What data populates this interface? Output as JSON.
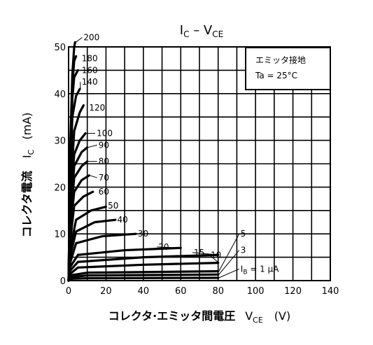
{
  "chart_data": {
    "type": "line",
    "title_main": "I",
    "title_sub": "C",
    "title_dash": " – V",
    "title_sub2": "CE",
    "xlabel": "コレクタ·エミッタ間電圧",
    "xlabel_var": "V",
    "xlabel_var_sub": "CE",
    "xlabel_unit": "(V)",
    "ylabel": "コレクタ電流",
    "ylabel_var": "I",
    "ylabel_var_sub": "C",
    "ylabel_unit": "(mA)",
    "xlim": [
      0,
      140
    ],
    "ylim": [
      0,
      50
    ],
    "x_ticks": [
      0,
      20,
      40,
      60,
      80,
      100,
      120,
      140
    ],
    "y_ticks": [
      0,
      10,
      20,
      30,
      40,
      50
    ],
    "x_tick_labels": [
      "0",
      "20",
      "40",
      "60",
      "80",
      "100",
      "120",
      "140"
    ],
    "y_tick_labels": [
      "0",
      "10",
      "20",
      "30",
      "40",
      "50"
    ],
    "grid": true,
    "legend_box": {
      "line1": "エミッタ接地",
      "line2": "Ta = 25°C",
      "placement": "top-right"
    },
    "series": [
      {
        "name": "200",
        "points": [
          [
            0,
            0
          ],
          [
            1,
            30
          ],
          [
            2,
            44
          ],
          [
            3,
            50
          ],
          [
            3.5,
            51
          ]
        ],
        "label_at": [
          8,
          52
        ]
      },
      {
        "name": "180",
        "points": [
          [
            0,
            0
          ],
          [
            1,
            28
          ],
          [
            2,
            42
          ],
          [
            3,
            47
          ],
          [
            4,
            48
          ]
        ],
        "label_at": [
          7,
          47.5
        ]
      },
      {
        "name": "160",
        "points": [
          [
            0,
            0
          ],
          [
            1,
            26
          ],
          [
            2,
            39
          ],
          [
            3,
            43.5
          ],
          [
            5,
            45
          ]
        ],
        "label_at": [
          7,
          45
        ]
      },
      {
        "name": "140",
        "points": [
          [
            0,
            0
          ],
          [
            1,
            23
          ],
          [
            2,
            35
          ],
          [
            4,
            39.5
          ],
          [
            6,
            41
          ]
        ],
        "label_at": [
          7,
          42.5
        ]
      },
      {
        "name": "120",
        "points": [
          [
            0,
            0
          ],
          [
            1,
            19
          ],
          [
            3,
            32
          ],
          [
            6,
            36
          ],
          [
            8,
            37.5
          ]
        ],
        "label_at": [
          11,
          37
        ]
      },
      {
        "name": "100",
        "points": [
          [
            0,
            0
          ],
          [
            1,
            16
          ],
          [
            3,
            27
          ],
          [
            6,
            30
          ],
          [
            9,
            31.5
          ]
        ],
        "label_at": [
          15,
          31.5
        ]
      },
      {
        "name": "90",
        "points": [
          [
            0,
            0
          ],
          [
            1,
            14
          ],
          [
            3,
            24.5
          ],
          [
            7,
            27.5
          ],
          [
            10,
            28.5
          ]
        ],
        "label_at": [
          16,
          29
        ]
      },
      {
        "name": "80",
        "points": [
          [
            0,
            0
          ],
          [
            1,
            13
          ],
          [
            3,
            22
          ],
          [
            7,
            24.5
          ],
          [
            10,
            25.5
          ]
        ],
        "label_at": [
          16,
          25.5
        ]
      },
      {
        "name": "70",
        "points": [
          [
            0,
            0
          ],
          [
            1,
            11
          ],
          [
            3,
            19
          ],
          [
            7,
            21.5
          ],
          [
            11,
            22.5
          ]
        ],
        "label_at": [
          16,
          22
        ]
      },
      {
        "name": "60",
        "points": [
          [
            0,
            0
          ],
          [
            1,
            9
          ],
          [
            3,
            16
          ],
          [
            8,
            18
          ],
          [
            13,
            19
          ]
        ],
        "label_at": [
          16,
          19
        ]
      },
      {
        "name": "50",
        "points": [
          [
            0,
            0
          ],
          [
            1,
            7
          ],
          [
            4,
            13
          ],
          [
            12,
            15
          ],
          [
            20,
            15.8
          ]
        ],
        "label_at": [
          21,
          16
        ]
      },
      {
        "name": "40",
        "points": [
          [
            0,
            0
          ],
          [
            1,
            5.5
          ],
          [
            4,
            10.5
          ],
          [
            14,
            12.5
          ],
          [
            25,
            13
          ]
        ],
        "label_at": [
          26,
          13
        ]
      },
      {
        "name": "30",
        "points": [
          [
            0,
            0
          ],
          [
            1,
            4
          ],
          [
            4,
            8
          ],
          [
            18,
            9.5
          ],
          [
            36,
            10
          ]
        ],
        "label_at": [
          37,
          10
        ]
      },
      {
        "name": "20",
        "points": [
          [
            0,
            0
          ],
          [
            1,
            3
          ],
          [
            5,
            5.5
          ],
          [
            30,
            6.5
          ],
          [
            60,
            7
          ]
        ],
        "label_at": [
          48,
          7.2
        ]
      },
      {
        "name": "15",
        "points": [
          [
            0,
            0
          ],
          [
            1,
            2.2
          ],
          [
            5,
            4
          ],
          [
            40,
            5
          ],
          [
            80,
            5.5
          ]
        ],
        "label_at": [
          67,
          6
        ]
      },
      {
        "name": "10",
        "points": [
          [
            0,
            0
          ],
          [
            1,
            1.5
          ],
          [
            5,
            2.8
          ],
          [
            40,
            3.4
          ],
          [
            80,
            3.8
          ]
        ],
        "label_at": [
          76,
          5.5
        ]
      },
      {
        "name": "5",
        "points": [
          [
            0,
            0
          ],
          [
            2,
            1.2
          ],
          [
            10,
            1.7
          ],
          [
            80,
            2
          ]
        ],
        "label_at": [
          92,
          10
        ]
      },
      {
        "name": "3",
        "points": [
          [
            0,
            0
          ],
          [
            2,
            0.8
          ],
          [
            10,
            1.1
          ],
          [
            80,
            1.3
          ]
        ],
        "label_at": [
          92,
          6.5
        ]
      },
      {
        "name": "IB = 1 μA",
        "points": [
          [
            0,
            0
          ],
          [
            2,
            0.4
          ],
          [
            10,
            0.5
          ],
          [
            80,
            0.6
          ]
        ],
        "label_at": [
          92,
          2.5
        ]
      }
    ]
  }
}
